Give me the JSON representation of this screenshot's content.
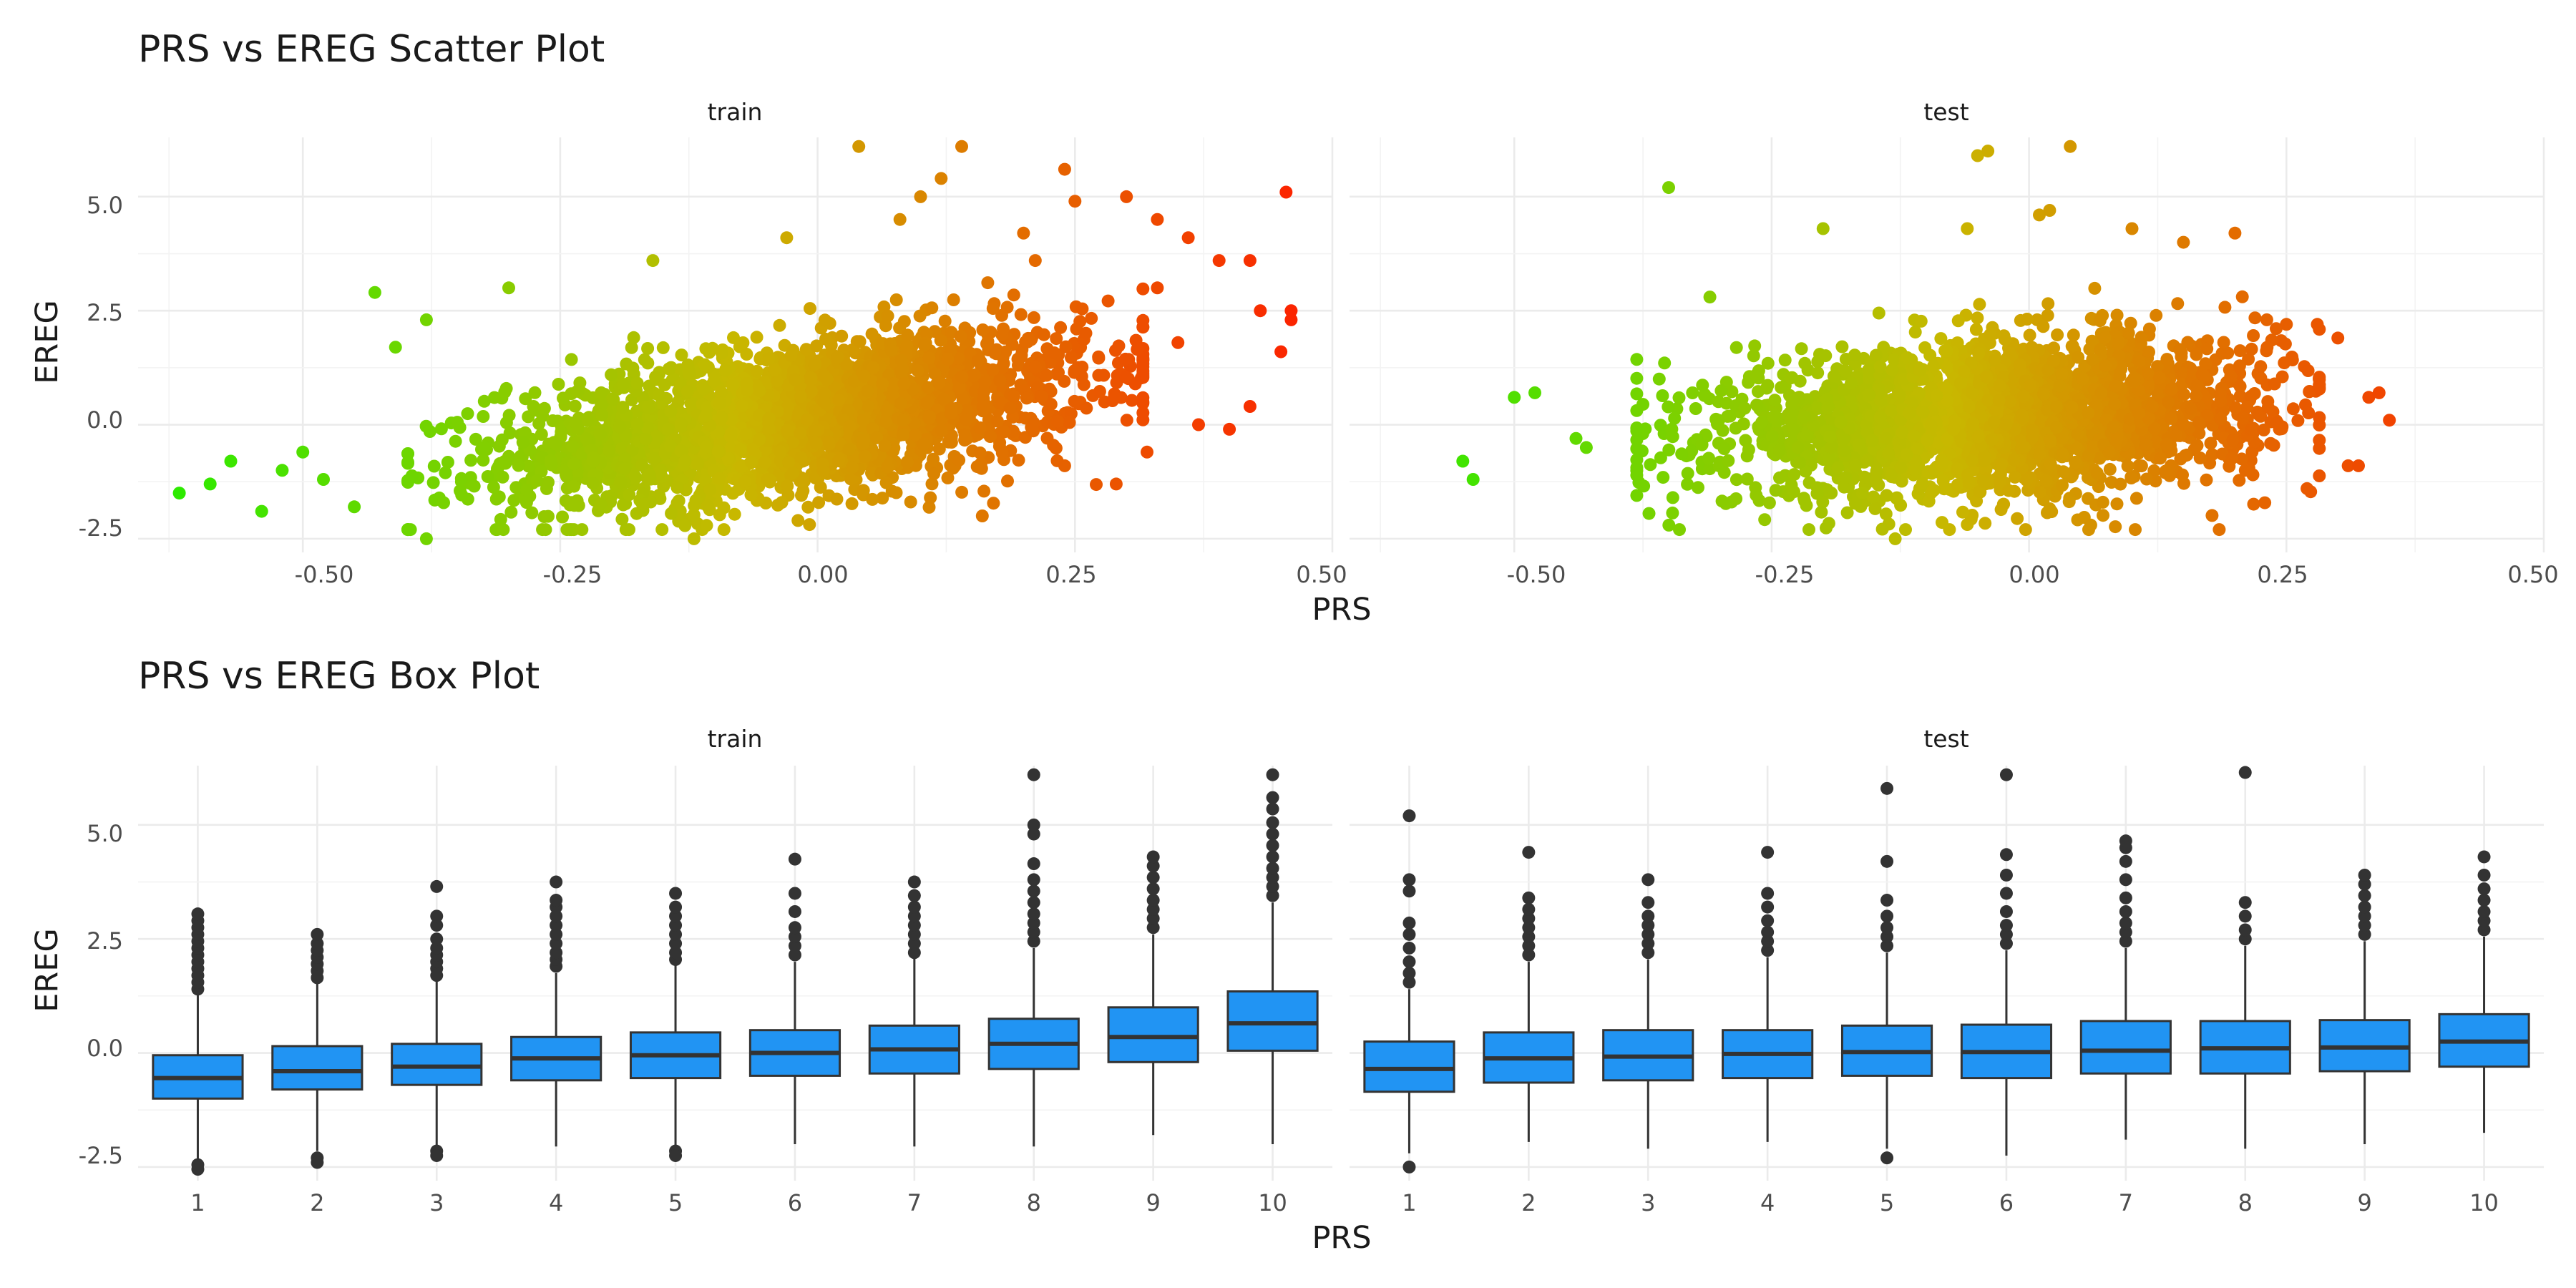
{
  "chart_data": [
    {
      "type": "scatter",
      "title": "PRS vs EREG Scatter Plot",
      "xlabel": "PRS",
      "ylabel": "EREG",
      "xlim": [
        -0.66,
        0.5
      ],
      "ylim": [
        -2.8,
        6.3
      ],
      "x_ticks": [
        -0.5,
        -0.25,
        0.0,
        0.25,
        0.5
      ],
      "x_tick_labels": [
        "-0.50",
        "-0.25",
        "0.00",
        "0.25",
        "0.50"
      ],
      "y_ticks": [
        -2.5,
        0.0,
        2.5,
        5.0
      ],
      "y_tick_labels": [
        "-2.5",
        "0.0",
        "2.5",
        "5.0"
      ],
      "grid": true,
      "color_scale": {
        "low": "#22ee00",
        "mid": "#c8b800",
        "high": "#ff1a00",
        "mapped_to": "PRS"
      },
      "facets": [
        {
          "label": "train",
          "center": {
            "x_mean": -0.02,
            "x_sd": 0.14,
            "slope": 3.1,
            "resid_sd": 0.82
          },
          "points": [
            [
              -0.62,
              -1.5
            ],
            [
              -0.59,
              -1.3
            ],
            [
              -0.57,
              -0.8
            ],
            [
              -0.54,
              -1.9
            ],
            [
              -0.52,
              -1.0
            ],
            [
              -0.5,
              -0.6
            ],
            [
              -0.48,
              -1.2
            ],
            [
              -0.45,
              -1.8
            ],
            [
              -0.43,
              2.9
            ],
            [
              -0.41,
              1.7
            ],
            [
              -0.38,
              2.3
            ],
            [
              -0.38,
              -2.5
            ],
            [
              -0.3,
              3.0
            ],
            [
              -0.16,
              3.6
            ],
            [
              -0.12,
              -2.5
            ],
            [
              -0.03,
              4.1
            ],
            [
              0.04,
              6.1
            ],
            [
              0.08,
              4.5
            ],
            [
              0.1,
              5.0
            ],
            [
              0.12,
              5.4
            ],
            [
              0.14,
              6.1
            ],
            [
              0.2,
              4.2
            ],
            [
              0.24,
              5.6
            ],
            [
              0.25,
              4.9
            ],
            [
              0.3,
              5.0
            ],
            [
              0.33,
              4.5
            ],
            [
              0.36,
              4.1
            ],
            [
              0.39,
              3.6
            ],
            [
              0.42,
              3.6
            ],
            [
              0.42,
              0.4
            ],
            [
              0.4,
              -0.1
            ],
            [
              0.43,
              2.5
            ],
            [
              0.45,
              1.6
            ],
            [
              0.455,
              5.1
            ],
            [
              0.46,
              2.5
            ],
            [
              0.46,
              2.3
            ],
            [
              0.33,
              3.0
            ],
            [
              0.35,
              1.8
            ],
            [
              0.29,
              -1.3
            ],
            [
              0.16,
              -2.0
            ],
            [
              0.24,
              -0.9
            ],
            [
              0.32,
              -0.6
            ],
            [
              0.37,
              0.0
            ]
          ]
        },
        {
          "label": "test",
          "center": {
            "x_mean": -0.03,
            "x_sd": 0.13,
            "slope": 1.4,
            "resid_sd": 0.82
          },
          "points": [
            [
              -0.55,
              -0.8
            ],
            [
              -0.54,
              -1.2
            ],
            [
              -0.5,
              0.6
            ],
            [
              -0.48,
              0.7
            ],
            [
              -0.44,
              -0.3
            ],
            [
              -0.43,
              -0.5
            ],
            [
              -0.35,
              5.2
            ],
            [
              -0.31,
              2.8
            ],
            [
              -0.2,
              4.3
            ],
            [
              -0.13,
              -2.5
            ],
            [
              -0.06,
              4.3
            ],
            [
              -0.05,
              5.9
            ],
            [
              -0.04,
              6.0
            ],
            [
              0.01,
              4.6
            ],
            [
              0.02,
              4.7
            ],
            [
              0.04,
              6.1
            ],
            [
              0.1,
              4.3
            ],
            [
              0.15,
              4.0
            ],
            [
              0.2,
              4.2
            ],
            [
              0.21,
              -1.0
            ],
            [
              0.25,
              2.2
            ],
            [
              0.28,
              2.2
            ],
            [
              0.3,
              1.9
            ],
            [
              0.31,
              -0.9
            ],
            [
              0.32,
              -0.9
            ],
            [
              0.33,
              0.6
            ],
            [
              0.34,
              0.7
            ],
            [
              0.35,
              0.1
            ],
            [
              0.27,
              -1.4
            ],
            [
              0.06,
              -2.2
            ]
          ]
        }
      ]
    },
    {
      "type": "box",
      "title": "PRS vs EREG Box Plot",
      "xlabel": "PRS",
      "ylabel": "EREG",
      "categories": [
        "1",
        "2",
        "3",
        "4",
        "5",
        "6",
        "7",
        "8",
        "9",
        "10"
      ],
      "ylim": [
        -2.8,
        6.3
      ],
      "y_ticks": [
        -2.5,
        0.0,
        2.5,
        5.0
      ],
      "y_tick_labels": [
        "-2.5",
        "0.0",
        "2.5",
        "5.0"
      ],
      "grid": true,
      "fill_color": "#2194f3",
      "facets": [
        {
          "label": "train",
          "boxes": [
            {
              "q1": -1.0,
              "median": -0.55,
              "q3": -0.05,
              "wlo": -2.35,
              "whi": 1.3,
              "outliers": [
                -2.45,
                -2.55,
                1.4,
                1.55,
                1.7,
                1.85,
                2.0,
                2.15,
                2.3,
                2.45,
                2.6,
                2.75,
                2.9,
                3.05
              ]
            },
            {
              "q1": -0.8,
              "median": -0.4,
              "q3": 0.15,
              "wlo": -2.15,
              "whi": 1.55,
              "outliers": [
                -2.3,
                -2.4,
                1.65,
                1.8,
                1.95,
                2.1,
                2.25,
                2.4,
                2.6
              ]
            },
            {
              "q1": -0.7,
              "median": -0.3,
              "q3": 0.2,
              "wlo": -2.05,
              "whi": 1.6,
              "outliers": [
                -2.15,
                -2.25,
                1.7,
                1.85,
                2.0,
                2.15,
                2.3,
                2.5,
                2.8,
                3.0,
                3.65
              ]
            },
            {
              "q1": -0.6,
              "median": -0.12,
              "q3": 0.35,
              "wlo": -2.05,
              "whi": 1.75,
              "outliers": [
                1.9,
                2.05,
                2.2,
                2.4,
                2.6,
                2.8,
                3.0,
                3.2,
                3.35,
                3.75
              ]
            },
            {
              "q1": -0.55,
              "median": -0.05,
              "q3": 0.45,
              "wlo": -2.1,
              "whi": 1.95,
              "outliers": [
                -2.15,
                -2.25,
                2.05,
                2.2,
                2.4,
                2.6,
                2.8,
                3.0,
                3.2,
                3.5
              ]
            },
            {
              "q1": -0.5,
              "median": 0.0,
              "q3": 0.5,
              "wlo": -2.0,
              "whi": 2.0,
              "outliers": [
                2.15,
                2.35,
                2.55,
                2.75,
                3.1,
                3.5,
                4.25
              ]
            },
            {
              "q1": -0.45,
              "median": 0.08,
              "q3": 0.6,
              "wlo": -2.05,
              "whi": 2.1,
              "outliers": [
                2.2,
                2.4,
                2.6,
                2.8,
                3.0,
                3.2,
                3.45,
                3.75
              ]
            },
            {
              "q1": -0.35,
              "median": 0.2,
              "q3": 0.75,
              "wlo": -2.05,
              "whi": 2.3,
              "outliers": [
                2.45,
                2.65,
                2.85,
                3.05,
                3.3,
                3.55,
                3.8,
                4.15,
                4.8,
                5.0,
                6.1
              ]
            },
            {
              "q1": -0.2,
              "median": 0.35,
              "q3": 1.0,
              "wlo": -1.8,
              "whi": 2.6,
              "outliers": [
                2.75,
                2.95,
                3.15,
                3.35,
                3.6,
                3.85,
                4.1,
                4.3
              ]
            },
            {
              "q1": 0.05,
              "median": 0.65,
              "q3": 1.35,
              "wlo": -2.0,
              "whi": 3.3,
              "outliers": [
                3.45,
                3.65,
                3.85,
                4.05,
                4.3,
                4.55,
                4.8,
                5.05,
                5.35,
                5.6,
                6.1
              ]
            }
          ]
        },
        {
          "label": "test",
          "boxes": [
            {
              "q1": -0.85,
              "median": -0.35,
              "q3": 0.25,
              "wlo": -2.2,
              "whi": 1.4,
              "outliers": [
                -2.5,
                1.55,
                1.75,
                2.0,
                2.3,
                2.6,
                2.85,
                3.55,
                3.8,
                5.2
              ]
            },
            {
              "q1": -0.65,
              "median": -0.12,
              "q3": 0.45,
              "wlo": -1.95,
              "whi": 2.0,
              "outliers": [
                2.15,
                2.35,
                2.55,
                2.75,
                2.95,
                3.15,
                3.4,
                4.4
              ]
            },
            {
              "q1": -0.6,
              "median": -0.08,
              "q3": 0.5,
              "wlo": -2.1,
              "whi": 2.05,
              "outliers": [
                2.2,
                2.4,
                2.6,
                2.8,
                3.0,
                3.3,
                3.8
              ]
            },
            {
              "q1": -0.55,
              "median": -0.02,
              "q3": 0.5,
              "wlo": -1.95,
              "whi": 2.1,
              "outliers": [
                2.25,
                2.45,
                2.65,
                2.9,
                3.2,
                3.5,
                4.4
              ]
            },
            {
              "q1": -0.5,
              "median": 0.02,
              "q3": 0.6,
              "wlo": -2.1,
              "whi": 2.2,
              "outliers": [
                -2.3,
                2.35,
                2.55,
                2.75,
                3.0,
                3.35,
                4.2,
                5.8
              ]
            },
            {
              "q1": -0.55,
              "median": 0.02,
              "q3": 0.62,
              "wlo": -2.25,
              "whi": 2.25,
              "outliers": [
                2.4,
                2.6,
                2.8,
                3.1,
                3.5,
                3.9,
                4.35,
                6.1
              ]
            },
            {
              "q1": -0.45,
              "median": 0.05,
              "q3": 0.7,
              "wlo": -1.9,
              "whi": 2.3,
              "outliers": [
                2.45,
                2.65,
                2.85,
                3.1,
                3.4,
                3.8,
                4.2,
                4.5,
                4.65
              ]
            },
            {
              "q1": -0.45,
              "median": 0.1,
              "q3": 0.7,
              "wlo": -2.1,
              "whi": 2.35,
              "outliers": [
                2.5,
                2.7,
                3.0,
                3.3,
                6.15
              ]
            },
            {
              "q1": -0.4,
              "median": 0.12,
              "q3": 0.72,
              "wlo": -2.0,
              "whi": 2.45,
              "outliers": [
                2.6,
                2.8,
                3.0,
                3.2,
                3.45,
                3.7,
                3.9
              ]
            },
            {
              "q1": -0.3,
              "median": 0.25,
              "q3": 0.85,
              "wlo": -1.75,
              "whi": 2.55,
              "outliers": [
                2.7,
                2.9,
                3.1,
                3.35,
                3.6,
                3.9,
                4.3
              ]
            }
          ]
        }
      ]
    }
  ]
}
